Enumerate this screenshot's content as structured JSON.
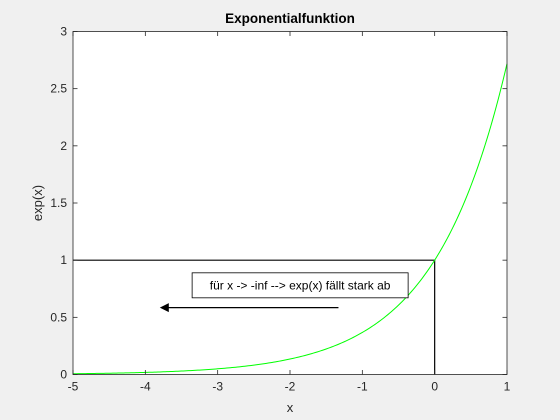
{
  "chart_data": {
    "type": "line",
    "title": "Exponentialfunktion",
    "xlabel": "x",
    "ylabel": "exp(x)",
    "xlim": [
      -5,
      1
    ],
    "ylim": [
      0,
      3
    ],
    "xticks": [
      -5,
      -4,
      -3,
      -2,
      -1,
      0,
      1
    ],
    "xtick_labels": [
      "-5",
      "-4",
      "-3",
      "-2",
      "-1",
      "0",
      "1"
    ],
    "yticks": [
      0,
      0.5,
      1,
      1.5,
      2,
      2.5,
      3
    ],
    "ytick_labels": [
      "0",
      "0.5",
      "1",
      "1.5",
      "2",
      "2.5",
      "3"
    ],
    "grid": false,
    "box": true,
    "series": [
      {
        "function": "exp(x)",
        "color": "#00ff00",
        "x": [
          -5,
          -4.5,
          -4,
          -3.5,
          -3,
          -2.5,
          -2,
          -1.5,
          -1,
          -0.75,
          -0.5,
          -0.25,
          0,
          0.25,
          0.5,
          0.75,
          1
        ],
        "y": [
          0.0067,
          0.0111,
          0.0183,
          0.0302,
          0.0498,
          0.0821,
          0.1353,
          0.2231,
          0.3679,
          0.4724,
          0.6065,
          0.7788,
          1,
          1.284,
          1.6487,
          2.117,
          2.7183
        ]
      }
    ],
    "reference_lines": [
      {
        "x": [
          -5,
          0
        ],
        "y": [
          1,
          1
        ],
        "color": "#000000"
      },
      {
        "x": [
          0,
          0
        ],
        "y": [
          0,
          1
        ],
        "color": "#000000"
      }
    ],
    "annotations": [
      {
        "text": "für x -> -inf --> exp(x) fällt stark ab",
        "x": -1.86,
        "y": 0.78
      }
    ],
    "arrows": [
      {
        "from": [
          -1.33,
          0.585
        ],
        "to": [
          -3.8,
          0.585
        ],
        "color": "#000000"
      }
    ]
  }
}
